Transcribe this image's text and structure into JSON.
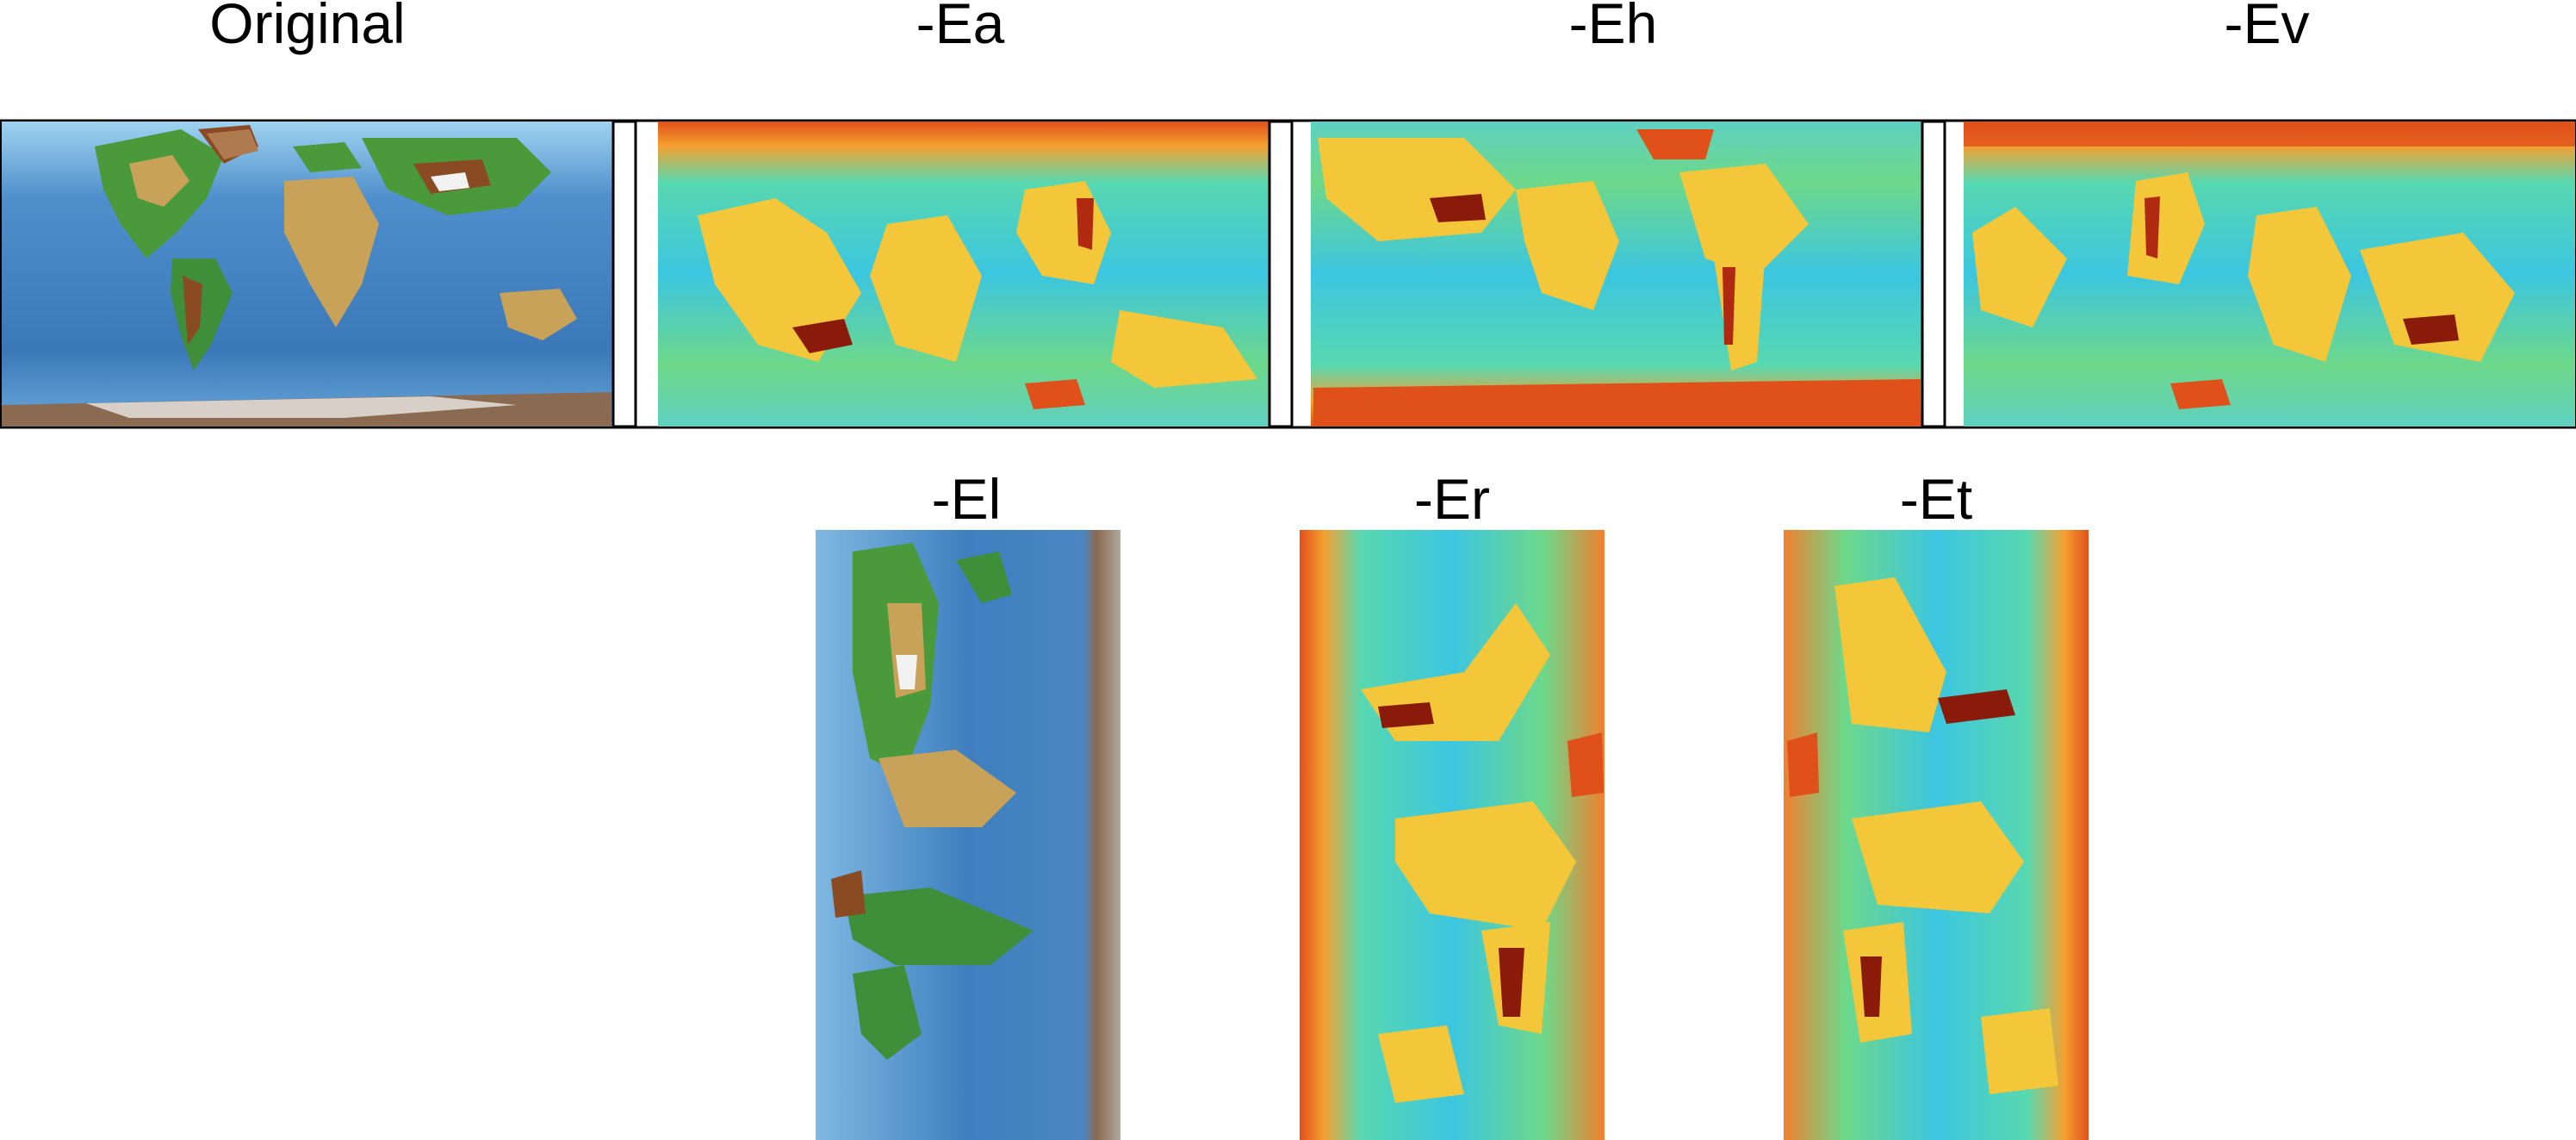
{
  "panels": [
    {
      "id": "original",
      "label": "Original",
      "kind": "relief",
      "orientation": "landscape"
    },
    {
      "id": "ea",
      "label": "-Ea",
      "kind": "jet",
      "orientation": "landscape"
    },
    {
      "id": "eh",
      "label": "-Eh",
      "kind": "jet",
      "orientation": "landscape"
    },
    {
      "id": "ev",
      "label": "-Ev",
      "kind": "jet",
      "orientation": "landscape"
    },
    {
      "id": "el",
      "label": "-El",
      "kind": "relief",
      "orientation": "portrait"
    },
    {
      "id": "er",
      "label": "-Er",
      "kind": "jet",
      "orientation": "portrait"
    },
    {
      "id": "et",
      "label": "-Et",
      "kind": "jet",
      "orientation": "portrait"
    }
  ],
  "colors": {
    "ocean": "#3f7fbf",
    "ocean_light": "#8fc4ea",
    "land_low": "#3f8f3a",
    "land_mid": "#c9a25a",
    "land_high": "#8a4a22",
    "ice": "#f2f2f2",
    "jet_low": "#2ac6e6",
    "jet_mid": "#7ee07a",
    "jet_high": "#f4c63a",
    "jet_peak": "#d9531e",
    "jet_max": "#8a1a0a"
  }
}
